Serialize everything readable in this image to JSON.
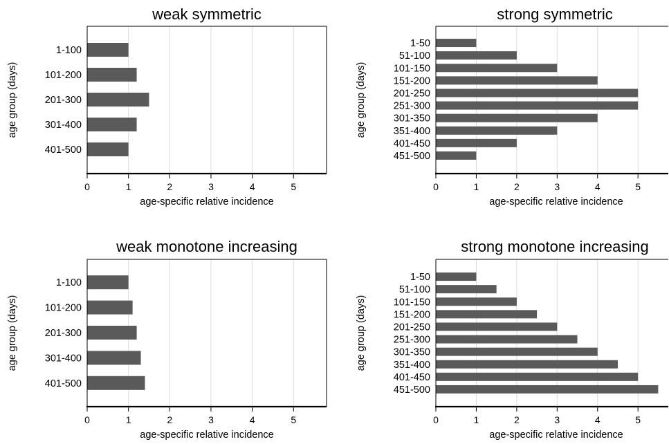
{
  "colors": {
    "bar": "#5a5a5a",
    "grid": "#dcdcdc",
    "frame": "#000000",
    "background": "#ffffff"
  },
  "chart_data": [
    {
      "type": "bar",
      "orientation": "horizontal",
      "title": "weak symmetric",
      "xlabel": "age-specific relative incidence",
      "ylabel": "age group (days)",
      "categories": [
        "1-100",
        "101-200",
        "201-300",
        "301-400",
        "401-500"
      ],
      "values": [
        1.0,
        1.2,
        1.5,
        1.2,
        1.0
      ],
      "xlim": [
        0,
        5.8
      ],
      "xticks": [
        "0",
        "1",
        "2",
        "3",
        "4",
        "5"
      ],
      "grid": "vertical"
    },
    {
      "type": "bar",
      "orientation": "horizontal",
      "title": "strong symmetric",
      "xlabel": "age-specific relative incidence",
      "ylabel": "age group (days)",
      "categories": [
        "1-50",
        "51-100",
        "101-150",
        "151-200",
        "201-250",
        "251-300",
        "301-350",
        "351-400",
        "401-450",
        "451-500"
      ],
      "values": [
        1.0,
        2.0,
        3.0,
        4.0,
        5.0,
        5.0,
        4.0,
        3.0,
        2.0,
        1.0
      ],
      "xlim": [
        0,
        5.75
      ],
      "xticks": [
        "0",
        "1",
        "2",
        "3",
        "4",
        "5"
      ],
      "grid": "vertical"
    },
    {
      "type": "bar",
      "orientation": "horizontal",
      "title": "weak monotone increasing",
      "xlabel": "age-specific relative incidence",
      "ylabel": "age group (days)",
      "categories": [
        "1-100",
        "101-200",
        "201-300",
        "301-400",
        "401-500"
      ],
      "values": [
        1.0,
        1.1,
        1.2,
        1.3,
        1.4
      ],
      "xlim": [
        0,
        5.8
      ],
      "xticks": [
        "0",
        "1",
        "2",
        "3",
        "4",
        "5"
      ],
      "grid": "vertical"
    },
    {
      "type": "bar",
      "orientation": "horizontal",
      "title": "strong monotone increasing",
      "xlabel": "age-specific relative incidence",
      "ylabel": "age group (days)",
      "categories": [
        "1-50",
        "51-100",
        "101-150",
        "151-200",
        "201-250",
        "251-300",
        "301-350",
        "351-400",
        "401-450",
        "451-500"
      ],
      "values": [
        1.0,
        1.5,
        2.0,
        2.5,
        3.0,
        3.5,
        4.0,
        4.5,
        5.0,
        5.5
      ],
      "xlim": [
        0,
        5.75
      ],
      "xticks": [
        "0",
        "1",
        "2",
        "3",
        "4",
        "5"
      ],
      "grid": "vertical"
    }
  ]
}
